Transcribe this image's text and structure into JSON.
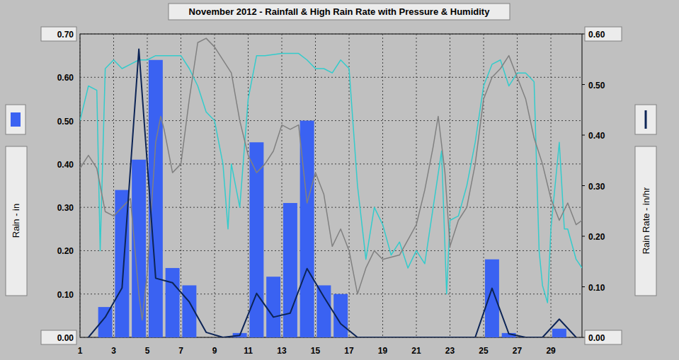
{
  "chart_data": {
    "type": "bar",
    "title": "November 2012 - Rainfall & High Rain Rate with Pressure & Humidity",
    "y_label": "Rain - in",
    "y2_label": "Rain Rate - in/hr",
    "xlim": [
      1,
      30.85
    ],
    "xticks": [
      1,
      3,
      5,
      7,
      9,
      11,
      13,
      15,
      17,
      19,
      21,
      23,
      25,
      27,
      29
    ],
    "ylim": [
      0,
      0.7
    ],
    "yticks": [
      {
        "value": 0,
        "label": "0.00"
      },
      {
        "value": 0.1,
        "label": "0.10"
      },
      {
        "value": 0.2,
        "label": "0.20"
      },
      {
        "value": 0.3,
        "label": "0.30"
      },
      {
        "value": 0.4,
        "label": "0.40"
      },
      {
        "value": 0.5,
        "label": "0.50"
      },
      {
        "value": 0.6,
        "label": "0.60"
      },
      {
        "value": 0.7,
        "label": "0.70"
      }
    ],
    "y2lim": [
      0,
      0.6
    ],
    "y2ticks": [
      {
        "value": 0,
        "label": "0.00"
      },
      {
        "value": 0.1,
        "label": "0.10"
      },
      {
        "value": 0.2,
        "label": "0.20"
      },
      {
        "value": 0.3,
        "label": "0.30"
      },
      {
        "value": 0.4,
        "label": "0.40"
      },
      {
        "value": 0.5,
        "label": "0.50"
      },
      {
        "value": 0.6,
        "label": "0.60"
      }
    ],
    "grid": true,
    "series": [
      {
        "type": "bar",
        "color": "#3a62f2",
        "x": [
          1.5,
          2.5,
          3.5,
          4.5,
          5.5,
          6.5,
          7.5,
          8.5,
          9.5,
          10.5,
          11.5,
          12.5,
          13.5,
          14.5,
          15.5,
          16.5,
          17.5,
          18.5,
          19.5,
          20.5,
          21.5,
          22.5,
          23.5,
          24.5,
          25.5,
          26.5,
          27.5,
          28.5,
          29.5,
          30.5
        ],
        "values": [
          0,
          0.07,
          0.34,
          0.41,
          0.64,
          0.16,
          0.12,
          0,
          0,
          0.01,
          0.45,
          0.14,
          0.31,
          0.5,
          0.12,
          0.1,
          0,
          0,
          0,
          0,
          0,
          0,
          0,
          0,
          0.18,
          0.01,
          0,
          0,
          0.02,
          0
        ]
      },
      {
        "type": "line",
        "axis": "y2",
        "color": "#0c2456",
        "x": [
          1.5,
          2.5,
          3.5,
          4.5,
          5.5,
          6.5,
          7.5,
          8.5,
          9.5,
          10.5,
          11.5,
          12.5,
          13.5,
          14.5,
          15.5,
          16.5,
          17.5,
          18.5,
          19.5,
          20.5,
          21.5,
          22.5,
          23.5,
          24.5,
          25.5,
          26.5,
          27.5,
          28.5,
          29.5,
          30.5
        ],
        "values": [
          0,
          0.04,
          0.098,
          0.57,
          0.117,
          0.108,
          0.07,
          0.01,
          0,
          0.004,
          0.087,
          0.04,
          0.048,
          0.136,
          0.08,
          0.027,
          0,
          0,
          0,
          0,
          0,
          0,
          0,
          0,
          0.097,
          0.007,
          0,
          0,
          0.036,
          0
        ]
      },
      {
        "type": "line",
        "color": "#33cccc",
        "x": [
          1,
          1.5,
          2,
          2.2,
          2.5,
          3,
          3.5,
          4,
          4.5,
          5,
          5.5,
          6,
          6.5,
          7,
          7.5,
          8,
          8.5,
          9,
          9.5,
          9.8,
          10,
          10.5,
          11,
          11.5,
          12,
          13,
          14,
          14.5,
          15,
          15.5,
          16,
          16.5,
          17,
          17.5,
          18,
          18.5,
          19,
          19.5,
          20,
          20.5,
          21,
          21.5,
          22,
          22.5,
          22.8,
          23,
          23.5,
          24,
          24.5,
          25,
          25.5,
          26,
          26.5,
          27,
          27.5,
          28,
          28.3,
          28.5,
          28.8,
          29,
          29.5,
          29.8,
          30,
          30.5,
          30.85
        ],
        "values": [
          0.5,
          0.58,
          0.57,
          0.2,
          0.62,
          0.64,
          0.62,
          0.63,
          0.64,
          0.64,
          0.65,
          0.65,
          0.65,
          0.65,
          0.62,
          0.58,
          0.52,
          0.5,
          0.4,
          0.25,
          0.4,
          0.3,
          0.55,
          0.65,
          0.65,
          0.655,
          0.655,
          0.64,
          0.62,
          0.62,
          0.61,
          0.64,
          0.62,
          0.35,
          0.18,
          0.3,
          0.26,
          0.19,
          0.22,
          0.16,
          0.2,
          0.17,
          0.3,
          0.43,
          0.1,
          0.27,
          0.28,
          0.35,
          0.45,
          0.58,
          0.63,
          0.64,
          0.58,
          0.61,
          0.61,
          0.59,
          0.2,
          0.12,
          0.08,
          0.25,
          0.45,
          0.25,
          0.25,
          0.18,
          0.16
        ]
      },
      {
        "type": "line",
        "color": "#808080",
        "x": [
          1,
          1.5,
          2,
          2.5,
          3,
          3.5,
          4,
          4.5,
          4.7,
          5,
          5.5,
          5.8,
          6,
          6.5,
          7,
          7.5,
          8,
          8.5,
          9,
          10,
          10.5,
          11,
          11.5,
          12,
          12.5,
          13,
          13.5,
          14,
          14.5,
          15,
          15.5,
          16,
          16.5,
          17,
          17.5,
          18,
          18.5,
          19,
          20,
          21,
          21.5,
          22,
          22.3,
          22.7,
          23,
          23.5,
          24,
          24.5,
          25,
          25.5,
          26,
          26.5,
          27,
          27.5,
          28,
          28.5,
          29,
          29.5,
          30,
          30.5,
          30.85
        ],
        "values": [
          0.39,
          0.42,
          0.39,
          0.29,
          0.28,
          0.3,
          0.32,
          0.1,
          0.04,
          0.15,
          0.45,
          0.51,
          0.48,
          0.38,
          0.4,
          0.55,
          0.68,
          0.69,
          0.67,
          0.61,
          0.5,
          0.42,
          0.38,
          0.4,
          0.43,
          0.49,
          0.48,
          0.49,
          0.31,
          0.38,
          0.33,
          0.21,
          0.25,
          0.2,
          0.1,
          0.16,
          0.2,
          0.18,
          0.19,
          0.26,
          0.34,
          0.44,
          0.51,
          0.38,
          0.21,
          0.27,
          0.3,
          0.4,
          0.55,
          0.6,
          0.62,
          0.65,
          0.6,
          0.55,
          0.46,
          0.4,
          0.32,
          0.27,
          0.31,
          0.26,
          0.27
        ]
      }
    ]
  }
}
